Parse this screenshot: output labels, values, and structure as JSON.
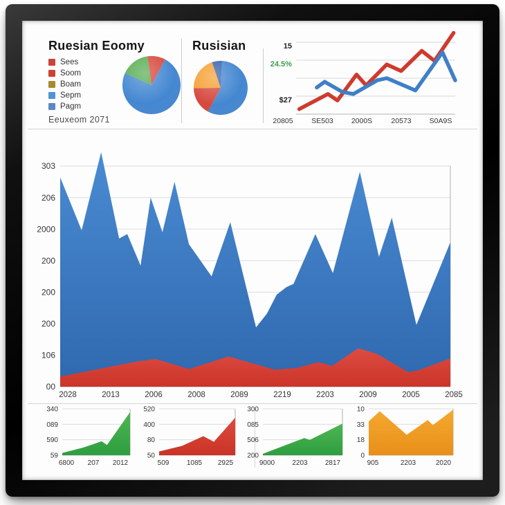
{
  "header": {
    "footnote": "Eeuxeom 2071",
    "legend": [
      {
        "label": "Sees",
        "color": "#c9453c"
      },
      {
        "label": "Soom",
        "color": "#cc4234"
      },
      {
        "label": "Boam",
        "color": "#a58a2d"
      },
      {
        "label": "Sepm",
        "color": "#4f94d4"
      },
      {
        "label": "Pagm",
        "color": "#5c87c5"
      }
    ]
  },
  "colors": {
    "blue": "#4487d1",
    "red": "#d6493e",
    "green": "#56ad52",
    "orange": "#f5a033",
    "navy": "#3863ae",
    "grid": "#dcdcdc"
  },
  "chart_data": [
    {
      "id": "pie-left",
      "type": "pie",
      "title": "Ruesian Eoomy",
      "start_angle": 28,
      "slices": [
        {
          "name": "blue",
          "value": 74,
          "color": "#4487d1"
        },
        {
          "name": "green",
          "value": 16,
          "color": "#56ad52"
        },
        {
          "name": "red",
          "value": 10,
          "color": "#d6493e"
        }
      ]
    },
    {
      "id": "pie-middle",
      "type": "pie",
      "title": "Rusisian",
      "start_angle": 3,
      "slices": [
        {
          "name": "blue",
          "value": 57,
          "color": "#4487d1"
        },
        {
          "name": "red",
          "value": 17,
          "color": "#d6493e"
        },
        {
          "name": "orange",
          "value": 20,
          "color": "#f5a033"
        },
        {
          "name": "navy",
          "value": 6,
          "color": "#3863ae"
        }
      ]
    },
    {
      "id": "line-topright",
      "type": "line",
      "x_labels": [
        "20805",
        "SE503",
        "2000S",
        "20573",
        "S0A9S"
      ],
      "y_labels": [
        {
          "text": "15",
          "color": "#222222",
          "pos": 0.05
        },
        {
          "text": "24.5%",
          "color": "#3f9e4d",
          "pos": 0.3
        },
        {
          "text": "$27",
          "color": "#222222",
          "pos": 0.8
        }
      ],
      "ylim": [
        0,
        100
      ],
      "series": [
        {
          "name": "red",
          "color": "#cf3a2e",
          "points": [
            [
              0.02,
              7
            ],
            [
              0.2,
              28
            ],
            [
              0.26,
              19
            ],
            [
              0.38,
              55
            ],
            [
              0.44,
              40
            ],
            [
              0.57,
              69
            ],
            [
              0.66,
              60
            ],
            [
              0.79,
              88
            ],
            [
              0.87,
              74
            ],
            [
              0.99,
              113
            ]
          ]
        },
        {
          "name": "blue",
          "color": "#3f7fc7",
          "points": [
            [
              0.13,
              37
            ],
            [
              0.18,
              45
            ],
            [
              0.29,
              31
            ],
            [
              0.36,
              28
            ],
            [
              0.51,
              47
            ],
            [
              0.57,
              50
            ],
            [
              0.75,
              33
            ],
            [
              0.92,
              86
            ],
            [
              1,
              47
            ]
          ]
        }
      ]
    },
    {
      "id": "main-area",
      "type": "area",
      "x_labels": [
        "2028",
        "2013",
        "2006",
        "2008",
        "2089",
        "2219",
        "2203",
        "2009",
        "2005",
        "2085"
      ],
      "y_labels": [
        "303",
        "206",
        "2000",
        "200",
        "200",
        "200",
        "106",
        "00"
      ],
      "ylim": [
        0,
        350
      ],
      "series": [
        {
          "name": "blue",
          "color_top": "#4a8bd2",
          "color_bottom": "#2f68ae",
          "points": [
            [
              0,
              332
            ],
            [
              0.055,
              248
            ],
            [
              0.105,
              372
            ],
            [
              0.151,
              235
            ],
            [
              0.172,
              242
            ],
            [
              0.206,
              192
            ],
            [
              0.232,
              300
            ],
            [
              0.262,
              245
            ],
            [
              0.293,
              325
            ],
            [
              0.33,
              226
            ],
            [
              0.388,
              175
            ],
            [
              0.436,
              261
            ],
            [
              0.502,
              94
            ],
            [
              0.53,
              116
            ],
            [
              0.555,
              146
            ],
            [
              0.58,
              158
            ],
            [
              0.598,
              163
            ],
            [
              0.654,
              242
            ],
            [
              0.699,
              180
            ],
            [
              0.768,
              341
            ],
            [
              0.817,
              206
            ],
            [
              0.85,
              268
            ],
            [
              0.913,
              98
            ],
            [
              1,
              229
            ]
          ]
        },
        {
          "name": "red",
          "color_top": "#dd4c41",
          "color_bottom": "#cb3429",
          "points": [
            [
              0,
              16
            ],
            [
              0.197,
              40
            ],
            [
              0.245,
              44
            ],
            [
              0.33,
              28
            ],
            [
              0.431,
              48
            ],
            [
              0.55,
              27
            ],
            [
              0.608,
              30
            ],
            [
              0.661,
              39
            ],
            [
              0.697,
              33
            ],
            [
              0.764,
              61
            ],
            [
              0.812,
              52
            ],
            [
              0.892,
              23
            ],
            [
              0.918,
              26
            ],
            [
              1,
              45
            ]
          ]
        }
      ]
    },
    {
      "id": "mini-1",
      "type": "area",
      "x_labels": [
        "6800",
        "207",
        "2012"
      ],
      "y_labels": [
        "340",
        "089",
        "590",
        "59"
      ],
      "ylim": [
        0,
        100
      ],
      "series": [
        {
          "name": "green",
          "color_top": "#4db654",
          "color_bottom": "#2f9e3f",
          "points": [
            [
              0,
              5
            ],
            [
              0.3,
              16
            ],
            [
              0.58,
              30
            ],
            [
              0.66,
              22
            ],
            [
              1,
              93
            ]
          ]
        }
      ]
    },
    {
      "id": "mini-2",
      "type": "area",
      "x_labels": [
        "509",
        "1085",
        "2925"
      ],
      "y_labels": [
        "520",
        "400",
        "80",
        "50"
      ],
      "ylim": [
        0,
        100
      ],
      "series": [
        {
          "name": "red",
          "color_top": "#dd4a3e",
          "color_bottom": "#c93426",
          "points": [
            [
              0,
              8
            ],
            [
              0.3,
              20
            ],
            [
              0.58,
              41
            ],
            [
              0.72,
              29
            ],
            [
              1,
              81
            ]
          ]
        }
      ]
    },
    {
      "id": "mini-3",
      "type": "area",
      "x_labels": [
        "9000",
        "2203",
        "2817"
      ],
      "y_labels": [
        "300",
        "085",
        "506",
        "200"
      ],
      "ylim": [
        0,
        100
      ],
      "series": [
        {
          "name": "green",
          "color_top": "#4db654",
          "color_bottom": "#2f9e3f",
          "points": [
            [
              0,
              3
            ],
            [
              0.52,
              37
            ],
            [
              0.59,
              33
            ],
            [
              1,
              68
            ]
          ]
        }
      ]
    },
    {
      "id": "mini-4",
      "type": "area",
      "x_labels": [
        "905",
        "2203",
        "2020"
      ],
      "y_labels": [
        "10",
        "33",
        "18",
        "0"
      ],
      "ylim": [
        0,
        100
      ],
      "series": [
        {
          "name": "orange",
          "color_top": "#f4a92f",
          "color_bottom": "#e88f1a",
          "points": [
            [
              0,
              73
            ],
            [
              0.13,
              95
            ],
            [
              0.45,
              44
            ],
            [
              0.7,
              76
            ],
            [
              0.76,
              65
            ],
            [
              1,
              98
            ]
          ]
        }
      ]
    }
  ]
}
